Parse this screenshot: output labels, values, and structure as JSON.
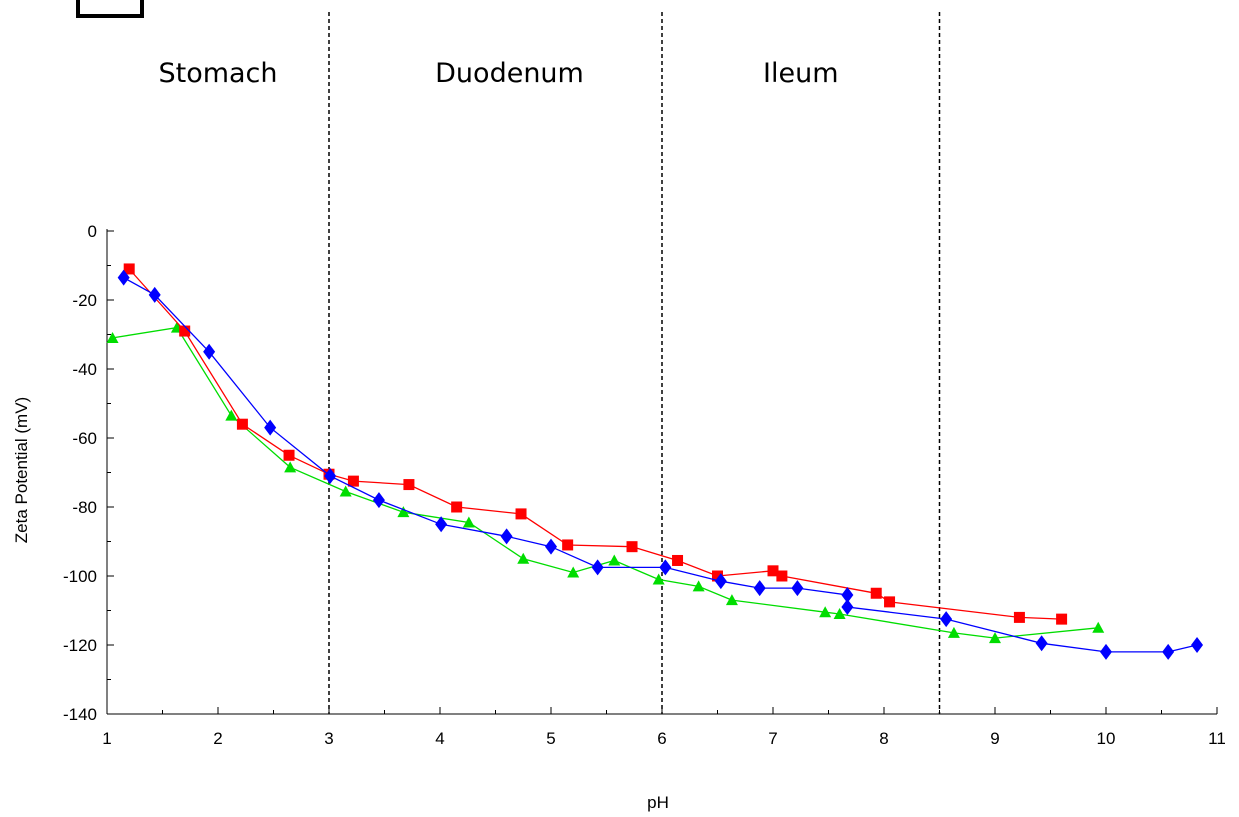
{
  "chart_data": {
    "type": "line",
    "xlabel": "pH",
    "ylabel": "Zeta Potential (mV)",
    "xlim": [
      1,
      11
    ],
    "ylim": [
      -140,
      0
    ],
    "xticks": [
      "1",
      "2",
      "3",
      "4",
      "5",
      "6",
      "7",
      "8",
      "9",
      "10",
      "11"
    ],
    "yticks": [
      "0",
      "-20",
      "-40",
      "-60",
      "-80",
      "-100",
      "-120",
      "-140"
    ],
    "grid": false,
    "regions": [
      {
        "label": "Stomach",
        "from": 1,
        "to": 3
      },
      {
        "label": "Duodenum",
        "from": 3,
        "to": 6
      },
      {
        "label": "Ileum",
        "from": 6,
        "to": 8.5
      }
    ],
    "dividers": [
      3,
      6,
      8.5
    ],
    "series": [
      {
        "color": "#ff0000",
        "marker": "square",
        "points": [
          [
            1.2,
            -11
          ],
          [
            1.7,
            -29
          ],
          [
            2.22,
            -56
          ],
          [
            2.64,
            -65
          ],
          [
            3.0,
            -70.5
          ],
          [
            3.22,
            -72.5
          ],
          [
            3.72,
            -73.5
          ],
          [
            4.15,
            -80
          ],
          [
            4.73,
            -82
          ],
          [
            5.15,
            -91
          ],
          [
            5.73,
            -91.5
          ],
          [
            6.14,
            -95.5
          ],
          [
            6.5,
            -100
          ],
          [
            7.0,
            -98.5
          ],
          [
            7.08,
            -100
          ],
          [
            7.93,
            -105
          ],
          [
            8.05,
            -107.5
          ],
          [
            9.22,
            -112
          ],
          [
            9.6,
            -112.5
          ]
        ]
      },
      {
        "color": "#0000ff",
        "marker": "diamond",
        "points": [
          [
            1.15,
            -13.5
          ],
          [
            1.43,
            -18.5
          ],
          [
            1.92,
            -35
          ],
          [
            2.47,
            -57
          ],
          [
            3.01,
            -71
          ],
          [
            3.45,
            -78
          ],
          [
            4.01,
            -85
          ],
          [
            4.6,
            -88.5
          ],
          [
            5.0,
            -91.5
          ],
          [
            5.42,
            -97.5
          ],
          [
            6.03,
            -97.5
          ],
          [
            6.53,
            -101.5
          ],
          [
            6.88,
            -103.5
          ],
          [
            7.22,
            -103.5
          ],
          [
            7.67,
            -105.5
          ],
          [
            7.67,
            -109
          ],
          [
            8.56,
            -112.5
          ],
          [
            9.42,
            -119.5
          ],
          [
            10.0,
            -122
          ],
          [
            10.56,
            -122
          ],
          [
            10.82,
            -120
          ]
        ]
      },
      {
        "color": "#00dd00",
        "marker": "triangle",
        "points": [
          [
            1.05,
            -31
          ],
          [
            1.63,
            -28
          ],
          [
            2.12,
            -53.5
          ],
          [
            2.65,
            -68.5
          ],
          [
            3.15,
            -75.5
          ],
          [
            3.67,
            -81.5
          ],
          [
            4.26,
            -84.5
          ],
          [
            4.75,
            -95
          ],
          [
            5.2,
            -99
          ],
          [
            5.57,
            -95.5
          ],
          [
            5.97,
            -101
          ],
          [
            6.33,
            -103
          ],
          [
            6.63,
            -107
          ],
          [
            7.47,
            -110.5
          ],
          [
            7.6,
            -111
          ],
          [
            8.63,
            -116.5
          ],
          [
            9.0,
            -118
          ],
          [
            9.93,
            -115
          ]
        ]
      }
    ]
  }
}
